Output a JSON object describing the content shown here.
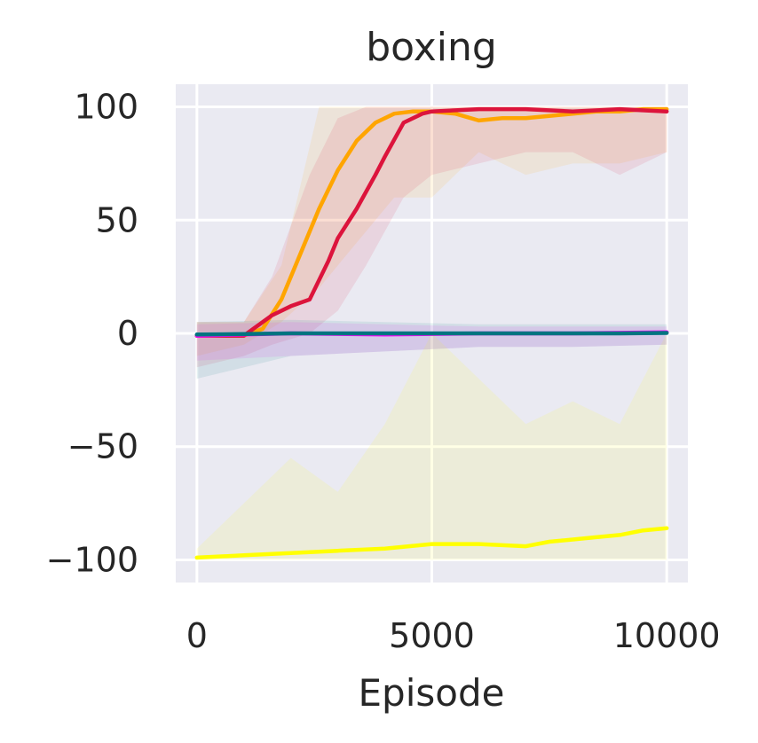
{
  "chart_data": {
    "type": "line",
    "title": "boxing",
    "xlabel": "Episode",
    "ylabel": "",
    "xlim": [
      -450,
      10450
    ],
    "ylim": [
      -110,
      110
    ],
    "xticks": [
      0,
      5000,
      10000
    ],
    "xtick_labels": [
      "0",
      "5000",
      "10000"
    ],
    "yticks": [
      100,
      50,
      0,
      -50,
      -100
    ],
    "ytick_labels": [
      "100",
      "50",
      "0",
      "−50",
      "−100"
    ],
    "grid": true,
    "legend": "none",
    "series": [
      {
        "color": "#FFA500",
        "x": [
          0,
          1000,
          1400,
          1800,
          2200,
          2600,
          3000,
          3400,
          3800,
          4200,
          4600,
          5000,
          5500,
          6000,
          6500,
          7000,
          7500,
          8000,
          8500,
          9000,
          9500,
          10000
        ],
        "y": [
          -1,
          -1,
          2,
          15,
          35,
          55,
          72,
          85,
          93,
          97,
          98,
          98,
          97,
          94,
          95,
          95,
          96,
          97,
          98,
          98,
          99,
          99
        ],
        "band": {
          "x": [
            0,
            1000,
            1800,
            2600,
            3400,
            4200,
            5000,
            6000,
            7000,
            8000,
            9000,
            10000
          ],
          "low": [
            -10,
            -5,
            5,
            20,
            40,
            60,
            60,
            80,
            70,
            75,
            75,
            80
          ],
          "high": [
            5,
            5,
            30,
            100,
            100,
            100,
            100,
            100,
            100,
            100,
            100,
            100
          ]
        }
      },
      {
        "color": "#DC143C",
        "x": [
          0,
          1000,
          1200,
          1600,
          2000,
          2400,
          2800,
          3000,
          3400,
          3800,
          4000,
          4400,
          4800,
          5000,
          6000,
          7000,
          8000,
          9000,
          10000
        ],
        "y": [
          -1,
          -1,
          2,
          8,
          12,
          15,
          32,
          42,
          55,
          70,
          78,
          93,
          97,
          98,
          99,
          99,
          98,
          99,
          98
        ],
        "band": {
          "x": [
            0,
            1000,
            1600,
            2400,
            3000,
            3600,
            4400,
            5000,
            6000,
            7000,
            8000,
            9000,
            10000
          ],
          "low": [
            -15,
            -10,
            -5,
            0,
            10,
            30,
            60,
            70,
            75,
            80,
            80,
            70,
            80
          ],
          "high": [
            5,
            5,
            25,
            70,
            95,
            100,
            100,
            100,
            100,
            100,
            100,
            100,
            100
          ]
        }
      },
      {
        "color": "#FF00FF",
        "x": [
          0,
          2000,
          4000,
          6000,
          8000,
          10000
        ],
        "y": [
          -1,
          0,
          -0.5,
          0,
          0,
          0.5
        ],
        "band": {
          "x": [
            0,
            2000,
            4000,
            6000,
            8000,
            10000
          ],
          "low": [
            -12,
            -10,
            -8,
            -6,
            -6,
            -5
          ],
          "high": [
            4,
            5,
            4,
            3,
            3,
            3
          ]
        }
      },
      {
        "color": "#007480",
        "x": [
          0,
          1000,
          2000,
          3000,
          4000,
          5000,
          6000,
          7000,
          8000,
          9000,
          10000
        ],
        "y": [
          -0.5,
          -0.3,
          0,
          0,
          0,
          0,
          0,
          0,
          0,
          0,
          0.2
        ],
        "band": {
          "x": [
            0,
            2000,
            4000,
            6000,
            8000,
            10000
          ],
          "low": [
            -20,
            -10,
            -8,
            -6,
            -6,
            -5
          ],
          "high": [
            5,
            6,
            5,
            4,
            4,
            4
          ]
        }
      },
      {
        "color": "#FFFF00",
        "x": [
          0,
          1000,
          2000,
          3000,
          4000,
          5000,
          6000,
          7000,
          7500,
          8000,
          8500,
          9000,
          9500,
          10000
        ],
        "y": [
          -99,
          -98,
          -97,
          -96,
          -95,
          -93,
          -93,
          -94,
          -92,
          -91,
          -90,
          -89,
          -87,
          -86
        ],
        "band": {
          "x": [
            0,
            1000,
            2000,
            3000,
            4000,
            5000,
            6000,
            7000,
            8000,
            9000,
            10000
          ],
          "low": [
            -100,
            -100,
            -100,
            -100,
            -100,
            -100,
            -100,
            -100,
            -100,
            -100,
            -100
          ],
          "high": [
            -95,
            -75,
            -55,
            -70,
            -40,
            0,
            -20,
            -40,
            -30,
            -40,
            0
          ]
        }
      }
    ]
  }
}
